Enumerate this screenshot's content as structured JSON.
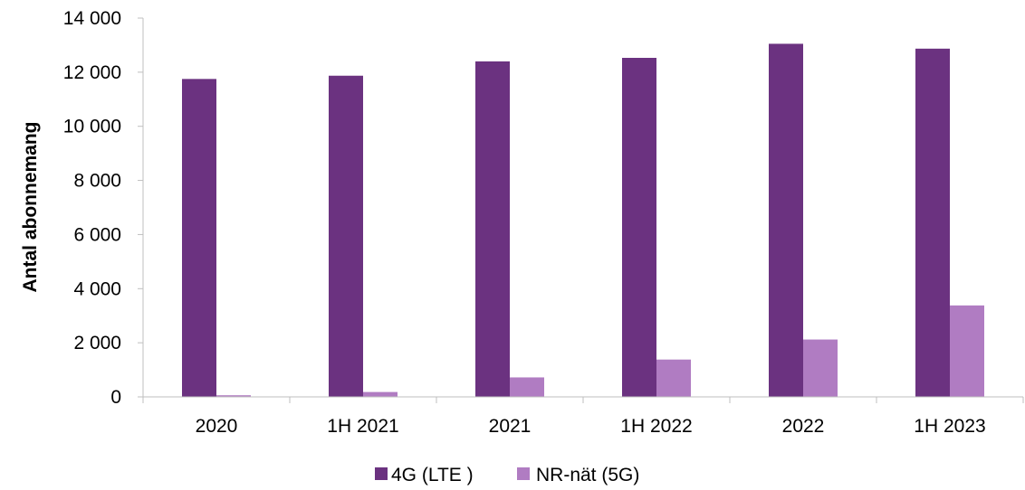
{
  "chart_data": {
    "type": "bar",
    "ylabel": "Antal abonnemang",
    "ylim": [
      0,
      14000
    ],
    "yticks": [
      0,
      2000,
      4000,
      6000,
      8000,
      10000,
      12000,
      14000
    ],
    "ytick_labels": [
      "0",
      "2 000",
      "4 000",
      "6 000",
      "8 000",
      "10 000",
      "12 000",
      "14 000"
    ],
    "categories": [
      "2020",
      "1H 2021",
      "2021",
      "1H 2022",
      "2022",
      "1H 2023"
    ],
    "series": [
      {
        "name": "4G (LTE )",
        "color": "#6b3280",
        "values": [
          11750,
          11870,
          12400,
          12530,
          13050,
          12870
        ]
      },
      {
        "name": "NR-nät (5G)",
        "color": "#b07cc2",
        "values": [
          60,
          180,
          720,
          1380,
          2120,
          3380
        ]
      }
    ],
    "legend_position": "bottom-center",
    "grid": false
  }
}
